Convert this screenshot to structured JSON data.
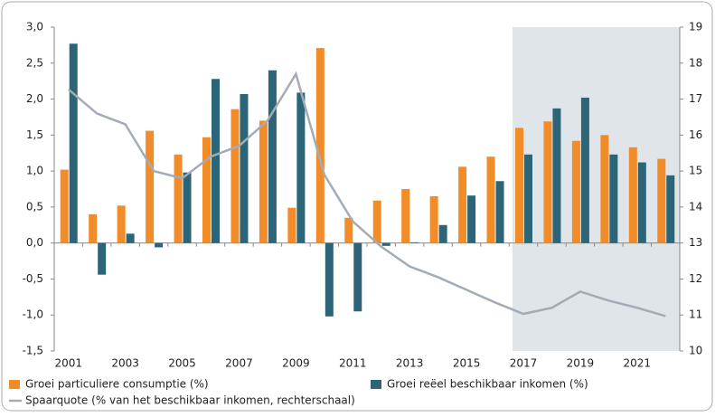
{
  "chart_data": {
    "type": "bar_line",
    "categories": [
      "2001",
      null,
      "2003",
      null,
      "2005",
      null,
      "2007",
      null,
      "2009",
      null,
      "2011",
      null,
      "2013",
      null,
      "2015",
      null,
      "2017",
      null,
      "2019",
      null,
      "2021",
      null
    ],
    "series": [
      {
        "name": "Groei particuliere consumptie (%)",
        "color": "#f28c28",
        "type": "bar",
        "values": [
          1.02,
          0.4,
          0.52,
          1.56,
          1.23,
          1.47,
          1.86,
          1.7,
          0.49,
          2.71,
          0.35,
          0.59,
          0.75,
          0.65,
          1.06,
          1.2,
          1.6,
          1.69,
          1.42,
          1.5,
          1.33,
          1.17
        ]
      },
      {
        "name": "Groei reëel beschikbaar inkomen (%)",
        "color": "#2c6577",
        "type": "bar",
        "values": [
          2.77,
          -0.44,
          0.13,
          -0.06,
          0.98,
          2.28,
          2.07,
          2.4,
          2.09,
          -1.02,
          -0.95,
          -0.04,
          0.01,
          0.25,
          0.66,
          0.86,
          1.23,
          1.87,
          2.02,
          1.23,
          1.12,
          0.94
        ]
      },
      {
        "name": "Spaarquote (% van het beschikbaar inkomen, rechterschaal)",
        "color": "#a3acb6",
        "type": "line",
        "axis": "y2",
        "values": [
          17.27,
          16.6,
          16.3,
          15.0,
          14.8,
          15.4,
          15.7,
          16.4,
          17.7,
          14.9,
          13.6,
          12.9,
          12.35,
          12.05,
          11.7,
          11.35,
          11.03,
          11.2,
          11.65,
          11.4,
          11.2,
          10.97
        ]
      }
    ],
    "ylim": [
      -1.5,
      3.0
    ],
    "yticks": [
      {
        "value": -1.5,
        "label": "-1,5"
      },
      {
        "value": -1.0,
        "label": "-1,0"
      },
      {
        "value": -0.5,
        "label": "-0,5"
      },
      {
        "value": 0,
        "label": "0,0"
      },
      {
        "value": 0.5,
        "label": "0,5"
      },
      {
        "value": 1.0,
        "label": "1,0"
      },
      {
        "value": 1.5,
        "label": "1,5"
      },
      {
        "value": 2.0,
        "label": "2,0"
      },
      {
        "value": 2.5,
        "label": "2,5"
      },
      {
        "value": 3.0,
        "label": "3,0"
      }
    ],
    "y2lim": [
      10,
      19
    ],
    "y2ticks": [
      10,
      11,
      12,
      13,
      14,
      15,
      16,
      17,
      18,
      19
    ],
    "grid": false
  }
}
